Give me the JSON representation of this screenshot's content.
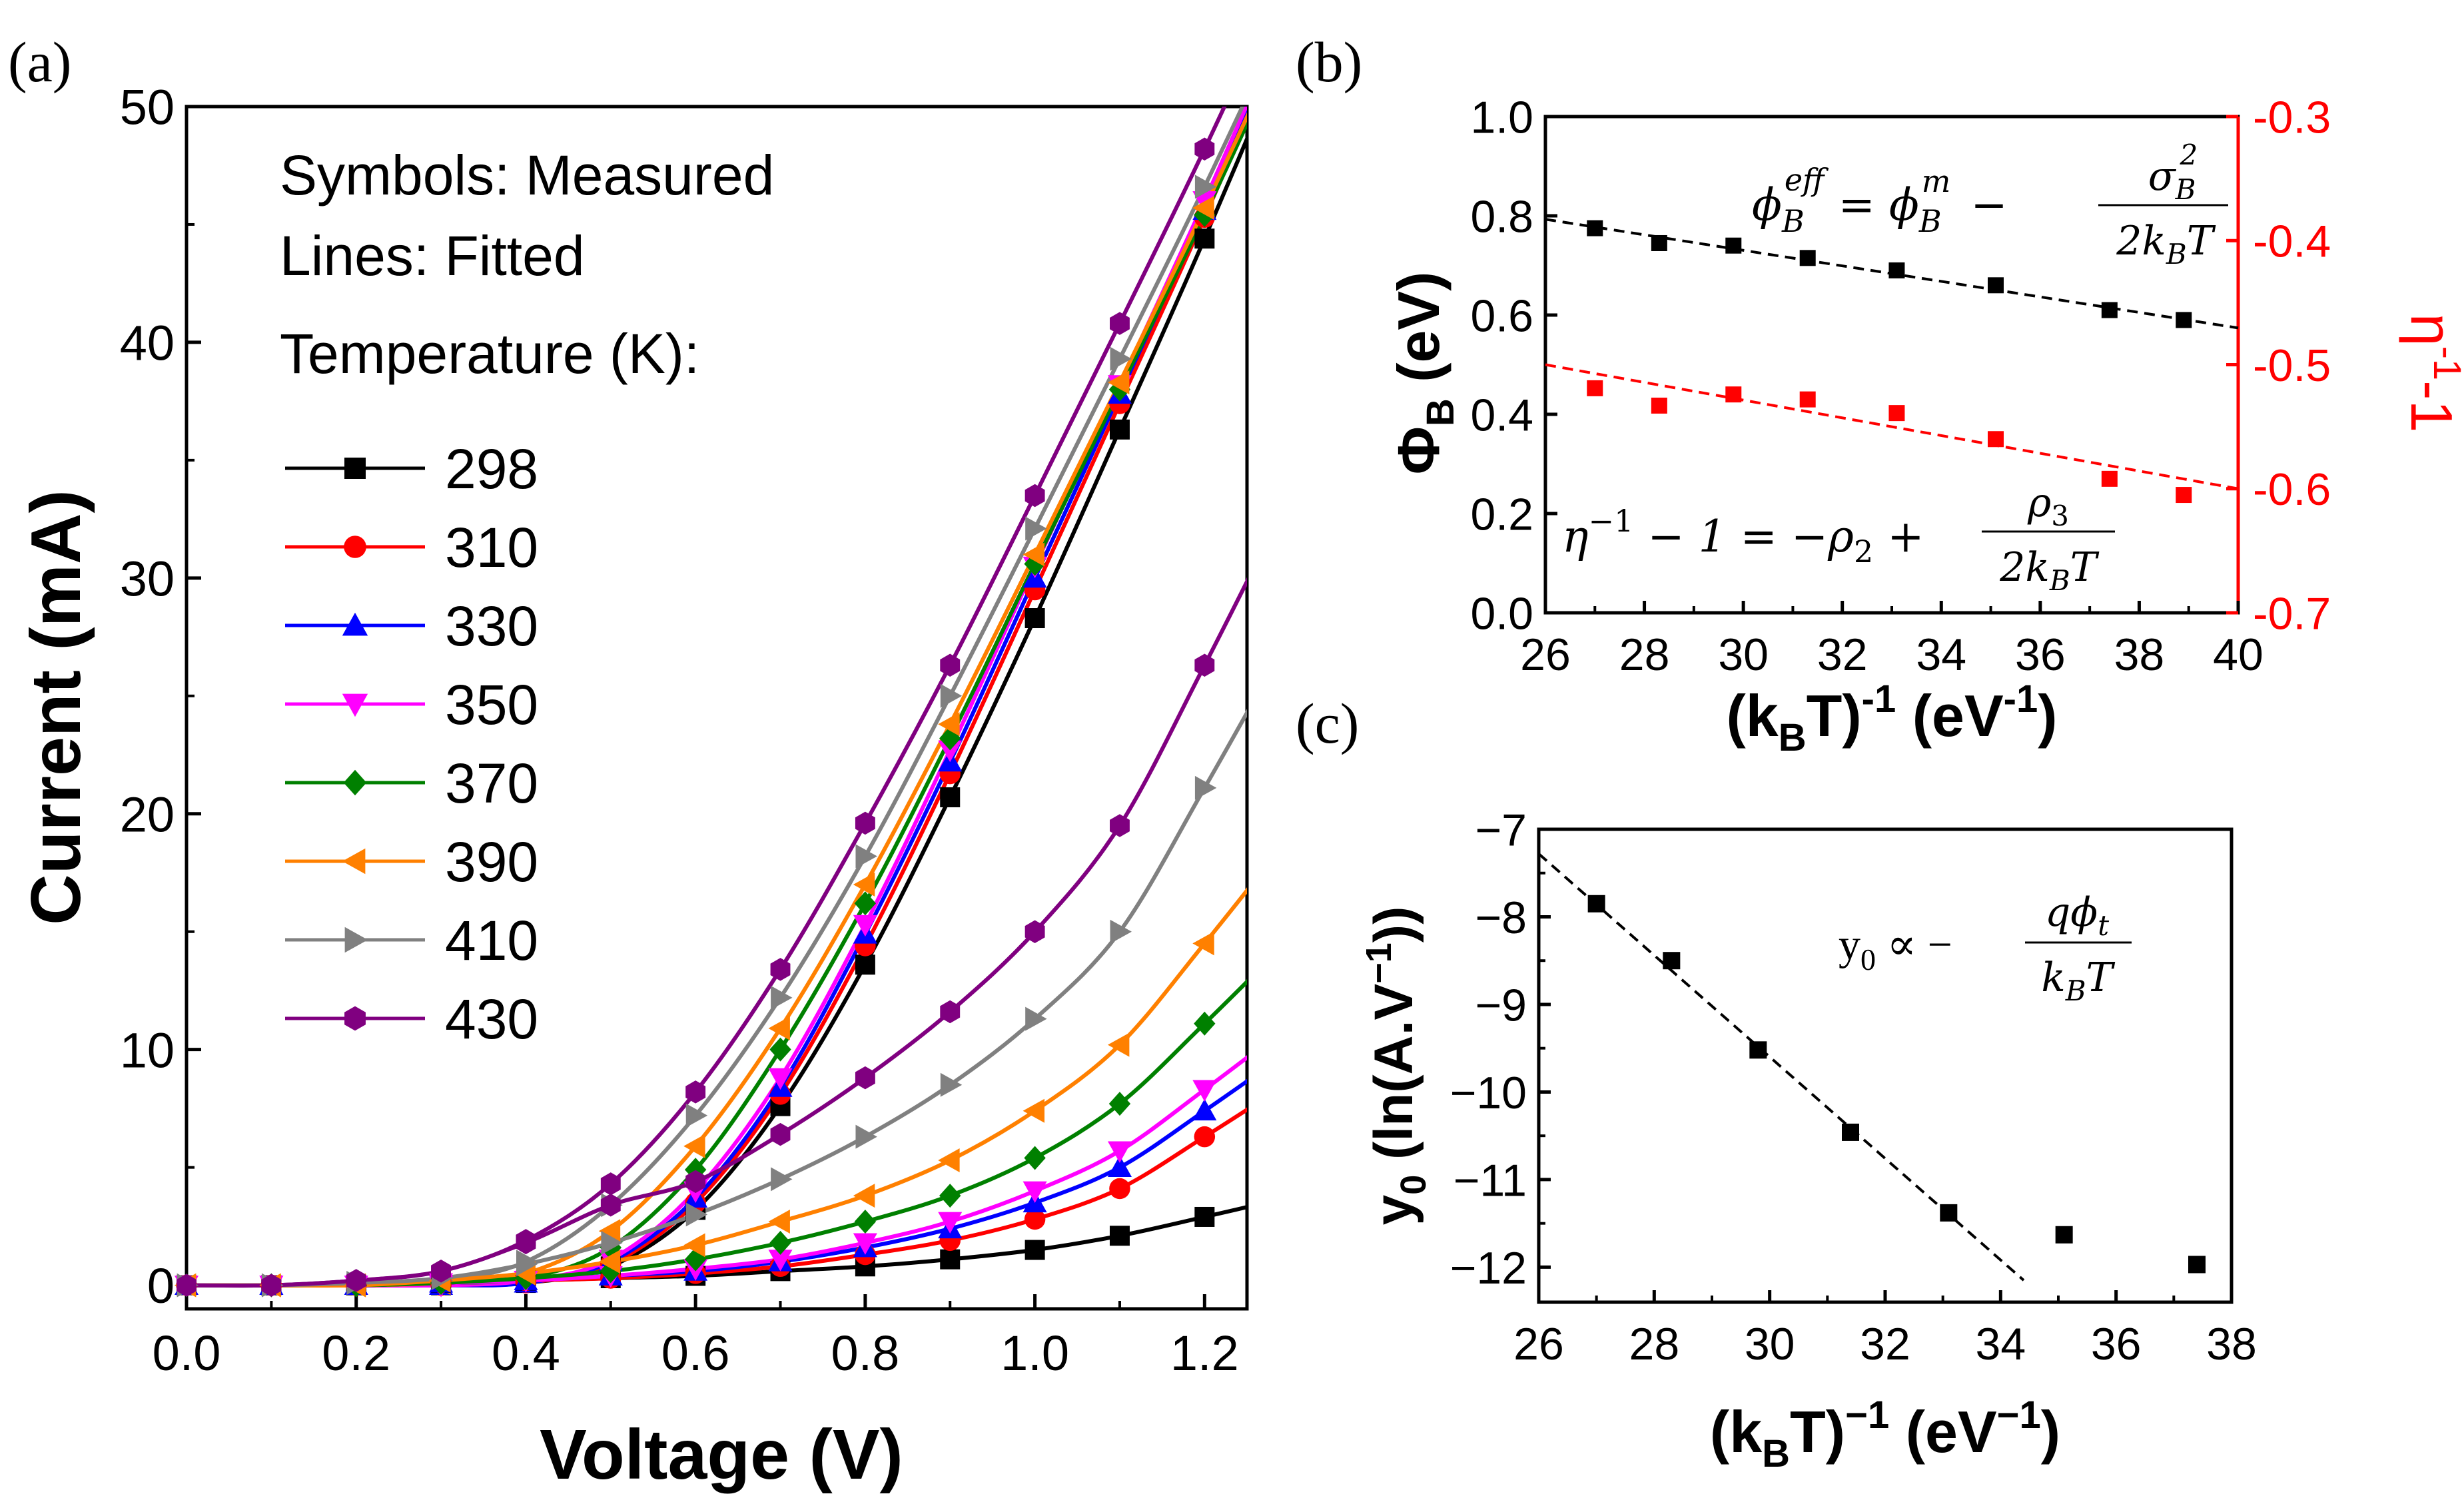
{
  "colors": {
    "black": "#000000",
    "red": "#ff0000",
    "blue": "#0000ff",
    "magenta": "#ff00ff",
    "green": "#008000",
    "orange": "#ff8000",
    "gray": "#808080",
    "purple": "#800080"
  },
  "chart_data": [
    {
      "panel_label": "(a)",
      "type": "line",
      "xlabel": "Voltage (V)",
      "ylabel": "Current (mA)",
      "xlim": [
        0,
        1.25
      ],
      "ylim": [
        -1,
        50
      ],
      "xticks": [
        "0.0",
        "0.2",
        "0.4",
        "0.6",
        "0.8",
        "1.0",
        "1.2"
      ],
      "yticks": [
        "0",
        "10",
        "20",
        "30",
        "40",
        "50"
      ],
      "annotations": [
        "Symbols: Measured",
        "Lines: Fitted",
        "Temperature (K):"
      ],
      "legend_position": "left",
      "x": [
        0.0,
        0.1,
        0.2,
        0.3,
        0.4,
        0.5,
        0.6,
        0.7,
        0.8,
        0.9,
        1.0,
        1.1,
        1.2
      ],
      "series": [
        {
          "name": "298",
          "color": "black",
          "marker": "square",
          "group": "upper",
          "values": [
            0,
            0,
            0,
            0,
            0.1,
            0.8,
            3.2,
            7.6,
            13.6,
            20.7,
            28.3,
            36.3,
            44.4
          ]
        },
        {
          "name": "310",
          "color": "red",
          "marker": "circle",
          "group": "upper",
          "values": [
            0,
            0,
            0,
            0,
            0.1,
            0.9,
            3.5,
            8.1,
            14.4,
            21.7,
            29.5,
            37.4,
            45.3
          ]
        },
        {
          "name": "330",
          "color": "blue",
          "marker": "triangle-up",
          "group": "upper",
          "values": [
            0,
            0,
            0,
            0,
            0.1,
            1.0,
            3.7,
            8.4,
            14.9,
            22.2,
            30.0,
            37.8,
            45.6
          ]
        },
        {
          "name": "350",
          "color": "magenta",
          "marker": "triangle-down",
          "group": "upper",
          "values": [
            0,
            0,
            0,
            0,
            0.2,
            1.1,
            4.0,
            8.8,
            15.3,
            22.7,
            30.5,
            38.2,
            46.0
          ]
        },
        {
          "name": "370",
          "color": "green",
          "marker": "diamond",
          "group": "upper",
          "values": [
            0,
            0,
            0,
            0.1,
            0.3,
            1.6,
            4.9,
            10.0,
            16.2,
            23.2,
            30.6,
            38.0,
            45.4
          ]
        },
        {
          "name": "390",
          "color": "orange",
          "marker": "triangle-left",
          "group": "upper",
          "values": [
            0,
            0,
            0,
            0.1,
            0.5,
            2.3,
            5.9,
            10.9,
            17.0,
            23.8,
            31.0,
            38.3,
            45.7
          ]
        },
        {
          "name": "410",
          "color": "gray",
          "marker": "triangle-right",
          "group": "upper",
          "values": [
            0,
            0,
            0.1,
            0.2,
            1.0,
            3.4,
            7.2,
            12.2,
            18.2,
            25.0,
            32.1,
            39.3,
            46.6
          ]
        },
        {
          "name": "430",
          "color": "purple",
          "marker": "hexagon",
          "group": "upper",
          "values": [
            0,
            0,
            0.2,
            0.6,
            1.9,
            4.3,
            8.2,
            13.4,
            19.6,
            26.3,
            33.5,
            40.8,
            48.2
          ]
        },
        {
          "name": "298",
          "color": "black",
          "marker": "square",
          "group": "lower",
          "values": [
            0,
            0,
            0,
            0.1,
            0.2,
            0.3,
            0.4,
            0.6,
            0.8,
            1.1,
            1.5,
            2.1,
            2.9
          ]
        },
        {
          "name": "310",
          "color": "red",
          "marker": "circle",
          "group": "lower",
          "values": [
            0,
            0,
            0,
            0.1,
            0.2,
            0.3,
            0.5,
            0.8,
            1.3,
            1.9,
            2.8,
            4.1,
            6.3
          ]
        },
        {
          "name": "330",
          "color": "blue",
          "marker": "triangle-up",
          "group": "lower",
          "values": [
            0,
            0,
            0,
            0.1,
            0.2,
            0.4,
            0.6,
            1.0,
            1.6,
            2.4,
            3.5,
            5.0,
            7.4
          ]
        },
        {
          "name": "350",
          "color": "magenta",
          "marker": "triangle-down",
          "group": "lower",
          "values": [
            0,
            0,
            0,
            0.1,
            0.2,
            0.4,
            0.7,
            1.1,
            1.8,
            2.7,
            4.0,
            5.7,
            8.3
          ]
        },
        {
          "name": "370",
          "color": "green",
          "marker": "diamond",
          "group": "lower",
          "values": [
            0,
            0,
            0,
            0.1,
            0.3,
            0.6,
            1.1,
            1.8,
            2.7,
            3.8,
            5.4,
            7.7,
            11.1
          ]
        },
        {
          "name": "390",
          "color": "orange",
          "marker": "triangle-left",
          "group": "lower",
          "values": [
            0,
            0,
            0,
            0.2,
            0.5,
            1.0,
            1.7,
            2.7,
            3.8,
            5.3,
            7.4,
            10.2,
            14.5
          ]
        },
        {
          "name": "410",
          "color": "gray",
          "marker": "triangle-right",
          "group": "lower",
          "values": [
            0,
            0,
            0.1,
            0.3,
            0.9,
            1.8,
            3.0,
            4.5,
            6.3,
            8.5,
            11.3,
            15.0,
            21.1
          ]
        },
        {
          "name": "430",
          "color": "purple",
          "marker": "hexagon",
          "group": "lower",
          "values": [
            0,
            0,
            0.2,
            0.6,
            1.8,
            3.4,
            4.4,
            6.4,
            8.8,
            11.6,
            15.0,
            19.5,
            26.3
          ]
        }
      ]
    },
    {
      "panel_label": "(b)",
      "type": "scatter",
      "xlabel_main": "(k",
      "xlabel_sub": "B",
      "xlabel_tail": "T)",
      "xlabel_sup": "-1",
      "xlabel_units": " (eV",
      "xlabel_units_sup": "-1",
      "xlabel_close": ")",
      "ylabel_left": "Φ",
      "ylabel_left_sub": "B",
      "ylabel_left_units": " (eV)",
      "ylabel_right": "η",
      "ylabel_right_sup": "-1",
      "ylabel_right_tail": "-1",
      "xlim": [
        26,
        40
      ],
      "ylim_left": [
        0,
        1.0
      ],
      "ylim_right": [
        -0.7,
        -0.3
      ],
      "xticks": [
        "26",
        "28",
        "30",
        "32",
        "34",
        "36",
        "38",
        "40"
      ],
      "yticks_left": [
        "0.0",
        "0.2",
        "0.4",
        "0.6",
        "0.8",
        "1.0"
      ],
      "yticks_right": [
        "-0.7",
        "-0.6",
        "-0.5",
        "-0.4",
        "-0.3"
      ],
      "x": [
        27.0,
        28.3,
        29.8,
        31.3,
        33.1,
        35.1,
        37.4,
        38.9
      ],
      "series": [
        {
          "name": "Φ_B",
          "axis": "left",
          "color": "black",
          "marker": "square",
          "values": [
            0.775,
            0.745,
            0.74,
            0.715,
            0.69,
            0.66,
            0.61,
            0.59
          ],
          "fit_line": [
            [
              26,
              0.793
            ],
            [
              40,
              0.574
            ]
          ]
        },
        {
          "name": "η^-1 - 1",
          "axis": "right",
          "color": "red",
          "marker": "square",
          "values": [
            -0.519,
            -0.533,
            -0.524,
            -0.528,
            -0.539,
            -0.56,
            -0.592,
            -0.605
          ],
          "fit_line": [
            [
              26,
              -0.5
            ],
            [
              40,
              -0.6
            ]
          ]
        }
      ],
      "equation_top": {
        "lhs": "ϕ",
        "lhs_sub": "B",
        "lhs_sup": "eff",
        "eq": " = ϕ",
        "rhs_sub": "B",
        "rhs_sup": "m",
        "minus": "−",
        "num": "σ",
        "num_sub": "B",
        "num_sup": "2",
        "den": "2k",
        "den_sub": "B",
        "den_tail": "T"
      },
      "equation_bottom": {
        "lhs": "η",
        "lhs_sup": "−1",
        "mid": " − 1 = −ρ",
        "mid_sub": "2",
        "plus": " +",
        "num": "ρ",
        "num_sub": "3",
        "den": "2k",
        "den_sub": "B",
        "den_tail": "T"
      }
    },
    {
      "panel_label": "(c)",
      "type": "scatter",
      "xlabel_main": "(k",
      "xlabel_sub": "B",
      "xlabel_tail": "T)",
      "xlabel_sup": "−1",
      "xlabel_units": " (eV",
      "xlabel_units_sup": "−1",
      "xlabel_close": ")",
      "ylabel_main": "y",
      "ylabel_sub": "0",
      "ylabel_units": " (ln(A.V",
      "ylabel_units_sup": "−1",
      "ylabel_close": "))",
      "xlim": [
        26,
        38
      ],
      "ylim": [
        -12.4,
        -7
      ],
      "xticks": [
        "26",
        "28",
        "30",
        "32",
        "34",
        "36",
        "38"
      ],
      "yticks": [
        "−7",
        "−8",
        "−9",
        "−10",
        "−11",
        "−12"
      ],
      "x": [
        27.0,
        28.3,
        29.8,
        31.4,
        33.1,
        35.1,
        37.4
      ],
      "series": [
        {
          "name": "y0",
          "color": "black",
          "marker": "square",
          "values": [
            -7.85,
            -8.5,
            -9.52,
            -10.46,
            -11.38,
            -11.63,
            -11.97
          ],
          "fit_line": [
            [
              26,
              -7.28
            ],
            [
              34.4,
              -12.15
            ]
          ]
        }
      ],
      "equation": {
        "lhs": "y",
        "lhs_sub": "0",
        "prop": " ∝ −",
        "num": "qϕ",
        "num_sub": "t",
        "den": "k",
        "den_sub": "B",
        "den_tail": "T"
      }
    }
  ]
}
